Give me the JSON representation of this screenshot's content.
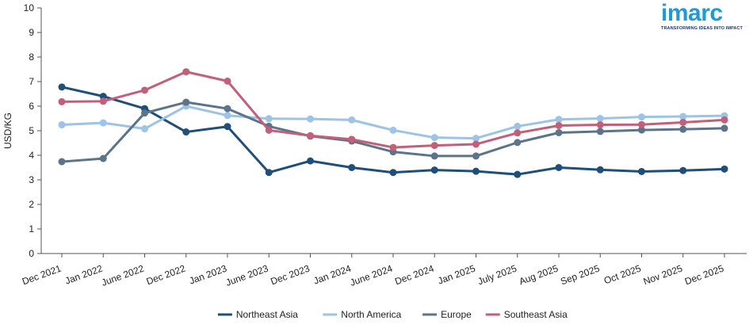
{
  "brand": {
    "logo_text": "imarc",
    "tagline": "TRANSFORMING IDEAS INTO IMPACT",
    "logo_color": "#1f9ad6",
    "tagline_color": "#1a3d6d"
  },
  "chart_data": {
    "type": "line",
    "title": "",
    "xlabel": "",
    "ylabel": "USD/KG",
    "ylim": [
      0,
      10
    ],
    "yticks": [
      0,
      1,
      2,
      3,
      4,
      5,
      6,
      7,
      8,
      9,
      10
    ],
    "grid": false,
    "legend_position": "bottom",
    "categories": [
      "Dec 2021",
      "Jan 2022",
      "June 2022",
      "Dec 2022",
      "Jan 2023",
      "June 2023",
      "Dec 2023",
      "Jan 2024",
      "June 2024",
      "Dec 2024",
      "Jan 2025",
      "July 2025",
      "Aug 2025",
      "Sep 2025",
      "Oct 2025",
      "Nov 2025",
      "Dec 2025"
    ],
    "series": [
      {
        "name": "Northeast Asia",
        "color": "#1f4e79",
        "values": [
          6.78,
          6.4,
          5.9,
          4.95,
          5.17,
          3.3,
          3.77,
          3.5,
          3.3,
          3.4,
          3.35,
          3.22,
          3.5,
          3.41,
          3.34,
          3.38,
          3.44
        ]
      },
      {
        "name": "North America",
        "color": "#9dc3e6",
        "values": [
          5.24,
          5.32,
          5.08,
          6.0,
          5.62,
          5.49,
          5.48,
          5.44,
          5.02,
          4.72,
          4.69,
          5.18,
          5.46,
          5.5,
          5.56,
          5.58,
          5.61
        ]
      },
      {
        "name": "Europe",
        "color": "#5b7489",
        "values": [
          3.74,
          3.87,
          5.72,
          6.16,
          5.9,
          5.18,
          4.78,
          4.58,
          4.14,
          3.97,
          3.97,
          4.52,
          4.92,
          4.97,
          5.03,
          5.06,
          5.1
        ]
      },
      {
        "name": "Southeast Asia",
        "color": "#c0607a",
        "values": [
          6.18,
          6.2,
          6.65,
          7.4,
          7.02,
          5.02,
          4.8,
          4.65,
          4.32,
          4.4,
          4.45,
          4.91,
          5.21,
          5.24,
          5.25,
          5.34,
          5.44
        ]
      }
    ]
  }
}
